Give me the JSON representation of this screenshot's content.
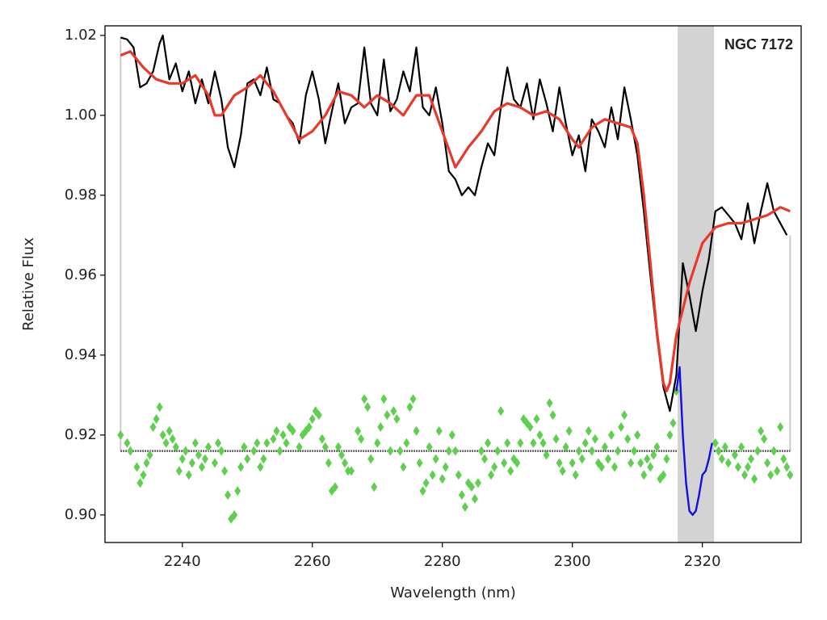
{
  "chart_data": {
    "type": "line",
    "xlabel": "Wavelength (nm)",
    "ylabel": "Relative Flux",
    "annotation": "NGC 7172",
    "xlim": [
      2228.1,
      2335.2
    ],
    "ylim": [
      0.8931,
      1.0224
    ],
    "xticks": [
      2240,
      2260,
      2280,
      2300,
      2320
    ],
    "yticks": [
      {
        "value": 0.9,
        "label": "0.90"
      },
      {
        "value": 0.92,
        "label": "0.92"
      },
      {
        "value": 0.94,
        "label": "0.94"
      },
      {
        "value": 0.96,
        "label": "0.96"
      },
      {
        "value": 0.98,
        "label": "0.98"
      },
      {
        "value": 1.0,
        "label": "1.00"
      },
      {
        "value": 1.02,
        "label": "1.02"
      }
    ],
    "shaded_region": {
      "x": [
        2316.2,
        2321.8
      ],
      "color": "#d3d3d3"
    },
    "edges": {
      "x": [
        2230.5,
        2333.5
      ],
      "color": "#cccccc",
      "y": 0.916
    },
    "reference_line": {
      "y": 0.916,
      "segments": [
        [
          2230.5,
          2316.2
        ],
        [
          2321.8,
          2333.5
        ]
      ],
      "color": "#333333"
    },
    "series": [
      {
        "style": "line",
        "color": "#000000",
        "width": 2.2,
        "x": [
          2230.5,
          2231.5,
          2232.5,
          2233.5,
          2234.5,
          2235.5,
          2236.5,
          2237,
          2238,
          2239,
          2240,
          2241,
          2242,
          2243,
          2244,
          2245,
          2246,
          2247,
          2248,
          2249,
          2250,
          2251,
          2252,
          2253,
          2254,
          2255,
          2256,
          2257,
          2258,
          2259,
          2260,
          2261,
          2262,
          2263,
          2264,
          2265,
          2266,
          2267,
          2268,
          2269,
          2270,
          2271,
          2272,
          2273,
          2274,
          2275,
          2276,
          2277,
          2278,
          2279,
          2280,
          2281,
          2282,
          2283,
          2284,
          2285,
          2286,
          2287,
          2288,
          2289,
          2290,
          2291,
          2292,
          2293,
          2294,
          2295,
          2296,
          2297,
          2298,
          2299,
          2300,
          2301,
          2302,
          2303,
          2304,
          2305,
          2306,
          2307,
          2308,
          2309,
          2310,
          2311,
          2312,
          2313,
          2314,
          2315,
          2316,
          2317,
          2318,
          2319,
          2320,
          2321,
          2322,
          2323,
          2324,
          2325,
          2326,
          2327,
          2328,
          2329,
          2330,
          2331,
          2332,
          2333
        ],
        "values": [
          1.0195,
          1.019,
          1.017,
          1.007,
          1.008,
          1.011,
          1.018,
          1.02,
          1.009,
          1.013,
          1.006,
          1.011,
          1.003,
          1.009,
          1.003,
          1.011,
          1.004,
          0.992,
          0.987,
          0.995,
          1.008,
          1.009,
          1.005,
          1.012,
          1.004,
          1.003,
          1.0,
          0.998,
          0.993,
          1.005,
          1.011,
          1.004,
          0.993,
          1.001,
          1.008,
          0.998,
          1.002,
          1.003,
          1.017,
          1.003,
          1.0,
          1.014,
          1.001,
          1.004,
          1.011,
          1.006,
          1.017,
          1.002,
          1.0,
          1.007,
          0.998,
          0.986,
          0.984,
          0.98,
          0.982,
          0.98,
          0.987,
          0.993,
          0.99,
          1.002,
          1.012,
          1.004,
          1.002,
          1.008,
          0.999,
          1.009,
          1.003,
          0.996,
          1.007,
          0.998,
          0.99,
          0.995,
          0.986,
          0.999,
          0.996,
          0.992,
          1.002,
          0.994,
          1.007,
          0.999,
          0.99,
          0.976,
          0.96,
          0.945,
          0.932,
          0.926,
          0.935,
          0.963,
          0.955,
          0.946,
          0.956,
          0.964,
          0.976,
          0.977,
          0.975,
          0.973,
          0.969,
          0.978,
          0.968,
          0.976,
          0.983,
          0.976,
          0.973,
          0.97
        ]
      },
      {
        "style": "line",
        "color": "#e8392b",
        "width": 3.2,
        "x": [
          2230.5,
          2232,
          2234,
          2236,
          2238,
          2240,
          2242,
          2244,
          2245,
          2246,
          2248,
          2250,
          2252,
          2254,
          2256,
          2258,
          2260,
          2262,
          2264,
          2266,
          2268,
          2270,
          2272,
          2274,
          2276,
          2278,
          2280,
          2282,
          2284,
          2286,
          2288,
          2290,
          2292,
          2294,
          2296,
          2298,
          2300,
          2301,
          2303,
          2305,
          2307,
          2309,
          2310,
          2311,
          2312,
          2313,
          2314,
          2314.5,
          2315,
          2316,
          2318,
          2320,
          2322,
          2324,
          2326,
          2328,
          2330,
          2332,
          2333.5
        ],
        "values": [
          1.015,
          1.016,
          1.012,
          1.009,
          1.008,
          1.008,
          1.01,
          1.005,
          1.0,
          1.0,
          1.005,
          1.007,
          1.01,
          1.006,
          1.0,
          0.994,
          0.996,
          1.0,
          1.006,
          1.005,
          1.002,
          1.005,
          1.003,
          1.0,
          1.005,
          1.005,
          0.996,
          0.987,
          0.992,
          0.996,
          1.001,
          1.003,
          1.002,
          1.0,
          1.001,
          0.999,
          0.994,
          0.992,
          0.997,
          0.999,
          0.998,
          0.997,
          0.993,
          0.98,
          0.963,
          0.946,
          0.933,
          0.931,
          0.933,
          0.945,
          0.958,
          0.968,
          0.972,
          0.973,
          0.973,
          0.974,
          0.975,
          0.977,
          0.976
        ]
      },
      {
        "style": "line",
        "color": "#1010e0",
        "width": 2.4,
        "x": [
          2316,
          2316.5,
          2317,
          2317.5,
          2318,
          2318.5,
          2319,
          2319.5,
          2320,
          2320.5,
          2321,
          2321.5
        ],
        "values": [
          0.931,
          0.937,
          0.92,
          0.908,
          0.901,
          0.9,
          0.901,
          0.905,
          0.91,
          0.911,
          0.914,
          0.918
        ]
      },
      {
        "style": "scatter",
        "color": "#5fcf4f",
        "x": [
          2230.5,
          2231.5,
          2232,
          2233,
          2233.5,
          2234,
          2234.5,
          2235,
          2235.5,
          2236,
          2236.5,
          2237,
          2237.5,
          2238,
          2238.5,
          2239,
          2239.5,
          2240,
          2240.5,
          2241,
          2241.5,
          2242,
          2242.5,
          2243,
          2243.5,
          2244,
          2245,
          2245.5,
          2246,
          2246.5,
          2247,
          2247.5,
          2248,
          2248.5,
          2249,
          2249.5,
          2250,
          2251,
          2251.5,
          2252,
          2252.5,
          2253,
          2254,
          2254.5,
          2255,
          2255.5,
          2256,
          2256.5,
          2257,
          2258,
          2258.5,
          2259,
          2259.5,
          2260,
          2260.5,
          2261,
          2261.5,
          2262,
          2262.5,
          2263,
          2263.5,
          2264,
          2264.5,
          2265,
          2265.5,
          2266,
          2267,
          2267.5,
          2268,
          2268.5,
          2269,
          2269.5,
          2270,
          2270.5,
          2271,
          2271.5,
          2272,
          2272.5,
          2273,
          2273.5,
          2274,
          2274.5,
          2275,
          2275.5,
          2276,
          2276.5,
          2277,
          2277.5,
          2278,
          2278.5,
          2279,
          2279.5,
          2280,
          2280.5,
          2281,
          2281.5,
          2282,
          2282.5,
          2283,
          2283.5,
          2284,
          2284.5,
          2285,
          2285.5,
          2286,
          2286.5,
          2287,
          2287.5,
          2288,
          2288.5,
          2289,
          2289.5,
          2290,
          2290.5,
          2291,
          2291.5,
          2292,
          2292.5,
          2293,
          2293.5,
          2294,
          2294.5,
          2295,
          2295.5,
          2296,
          2296.5,
          2297,
          2297.5,
          2298,
          2298.5,
          2299,
          2299.5,
          2300,
          2300.5,
          2301,
          2301.5,
          2302,
          2302.5,
          2303,
          2303.5,
          2304,
          2304.5,
          2305,
          2305.5,
          2306,
          2306.5,
          2307,
          2307.5,
          2308,
          2308.5,
          2309,
          2309.5,
          2310,
          2310.5,
          2311,
          2311.5,
          2312,
          2312.5,
          2313,
          2313.5,
          2314,
          2314.5,
          2315,
          2315.5,
          2316,
          2322,
          2322.5,
          2323,
          2323.5,
          2324,
          2325,
          2325.5,
          2326,
          2326.5,
          2327,
          2327.5,
          2328,
          2328.5,
          2329,
          2329.5,
          2330,
          2330.5,
          2331,
          2331.5,
          2332,
          2332.5,
          2333,
          2333.5
        ],
        "values": [
          0.92,
          0.918,
          0.916,
          0.912,
          0.908,
          0.91,
          0.913,
          0.915,
          0.922,
          0.924,
          0.927,
          0.92,
          0.918,
          0.921,
          0.919,
          0.917,
          0.911,
          0.914,
          0.916,
          0.91,
          0.913,
          0.918,
          0.915,
          0.912,
          0.914,
          0.917,
          0.913,
          0.918,
          0.916,
          0.911,
          0.905,
          0.899,
          0.9,
          0.906,
          0.912,
          0.917,
          0.914,
          0.916,
          0.918,
          0.912,
          0.914,
          0.918,
          0.919,
          0.921,
          0.916,
          0.92,
          0.918,
          0.922,
          0.921,
          0.917,
          0.92,
          0.921,
          0.922,
          0.924,
          0.926,
          0.925,
          0.919,
          0.917,
          0.913,
          0.906,
          0.907,
          0.917,
          0.915,
          0.913,
          0.911,
          0.911,
          0.921,
          0.919,
          0.929,
          0.927,
          0.914,
          0.907,
          0.918,
          0.922,
          0.929,
          0.925,
          0.916,
          0.926,
          0.924,
          0.916,
          0.912,
          0.918,
          0.927,
          0.929,
          0.921,
          0.913,
          0.906,
          0.908,
          0.917,
          0.91,
          0.914,
          0.921,
          0.909,
          0.912,
          0.916,
          0.92,
          0.916,
          0.91,
          0.905,
          0.902,
          0.908,
          0.907,
          0.904,
          0.908,
          0.916,
          0.914,
          0.918,
          0.91,
          0.912,
          0.916,
          0.926,
          0.913,
          0.918,
          0.911,
          0.914,
          0.913,
          0.918,
          0.924,
          0.923,
          0.922,
          0.918,
          0.924,
          0.92,
          0.918,
          0.915,
          0.928,
          0.925,
          0.919,
          0.913,
          0.911,
          0.917,
          0.921,
          0.913,
          0.91,
          0.916,
          0.914,
          0.918,
          0.921,
          0.916,
          0.919,
          0.913,
          0.912,
          0.917,
          0.914,
          0.92,
          0.912,
          0.916,
          0.922,
          0.925,
          0.919,
          0.913,
          0.916,
          0.92,
          0.913,
          0.91,
          0.914,
          0.912,
          0.915,
          0.917,
          0.909,
          0.91,
          0.914,
          0.92,
          0.923,
          0.931,
          0.918,
          0.916,
          0.914,
          0.917,
          0.913,
          0.915,
          0.912,
          0.917,
          0.91,
          0.912,
          0.914,
          0.909,
          0.916,
          0.921,
          0.919,
          0.913,
          0.91,
          0.916,
          0.911,
          0.922,
          0.914,
          0.912,
          0.91
        ]
      }
    ]
  }
}
